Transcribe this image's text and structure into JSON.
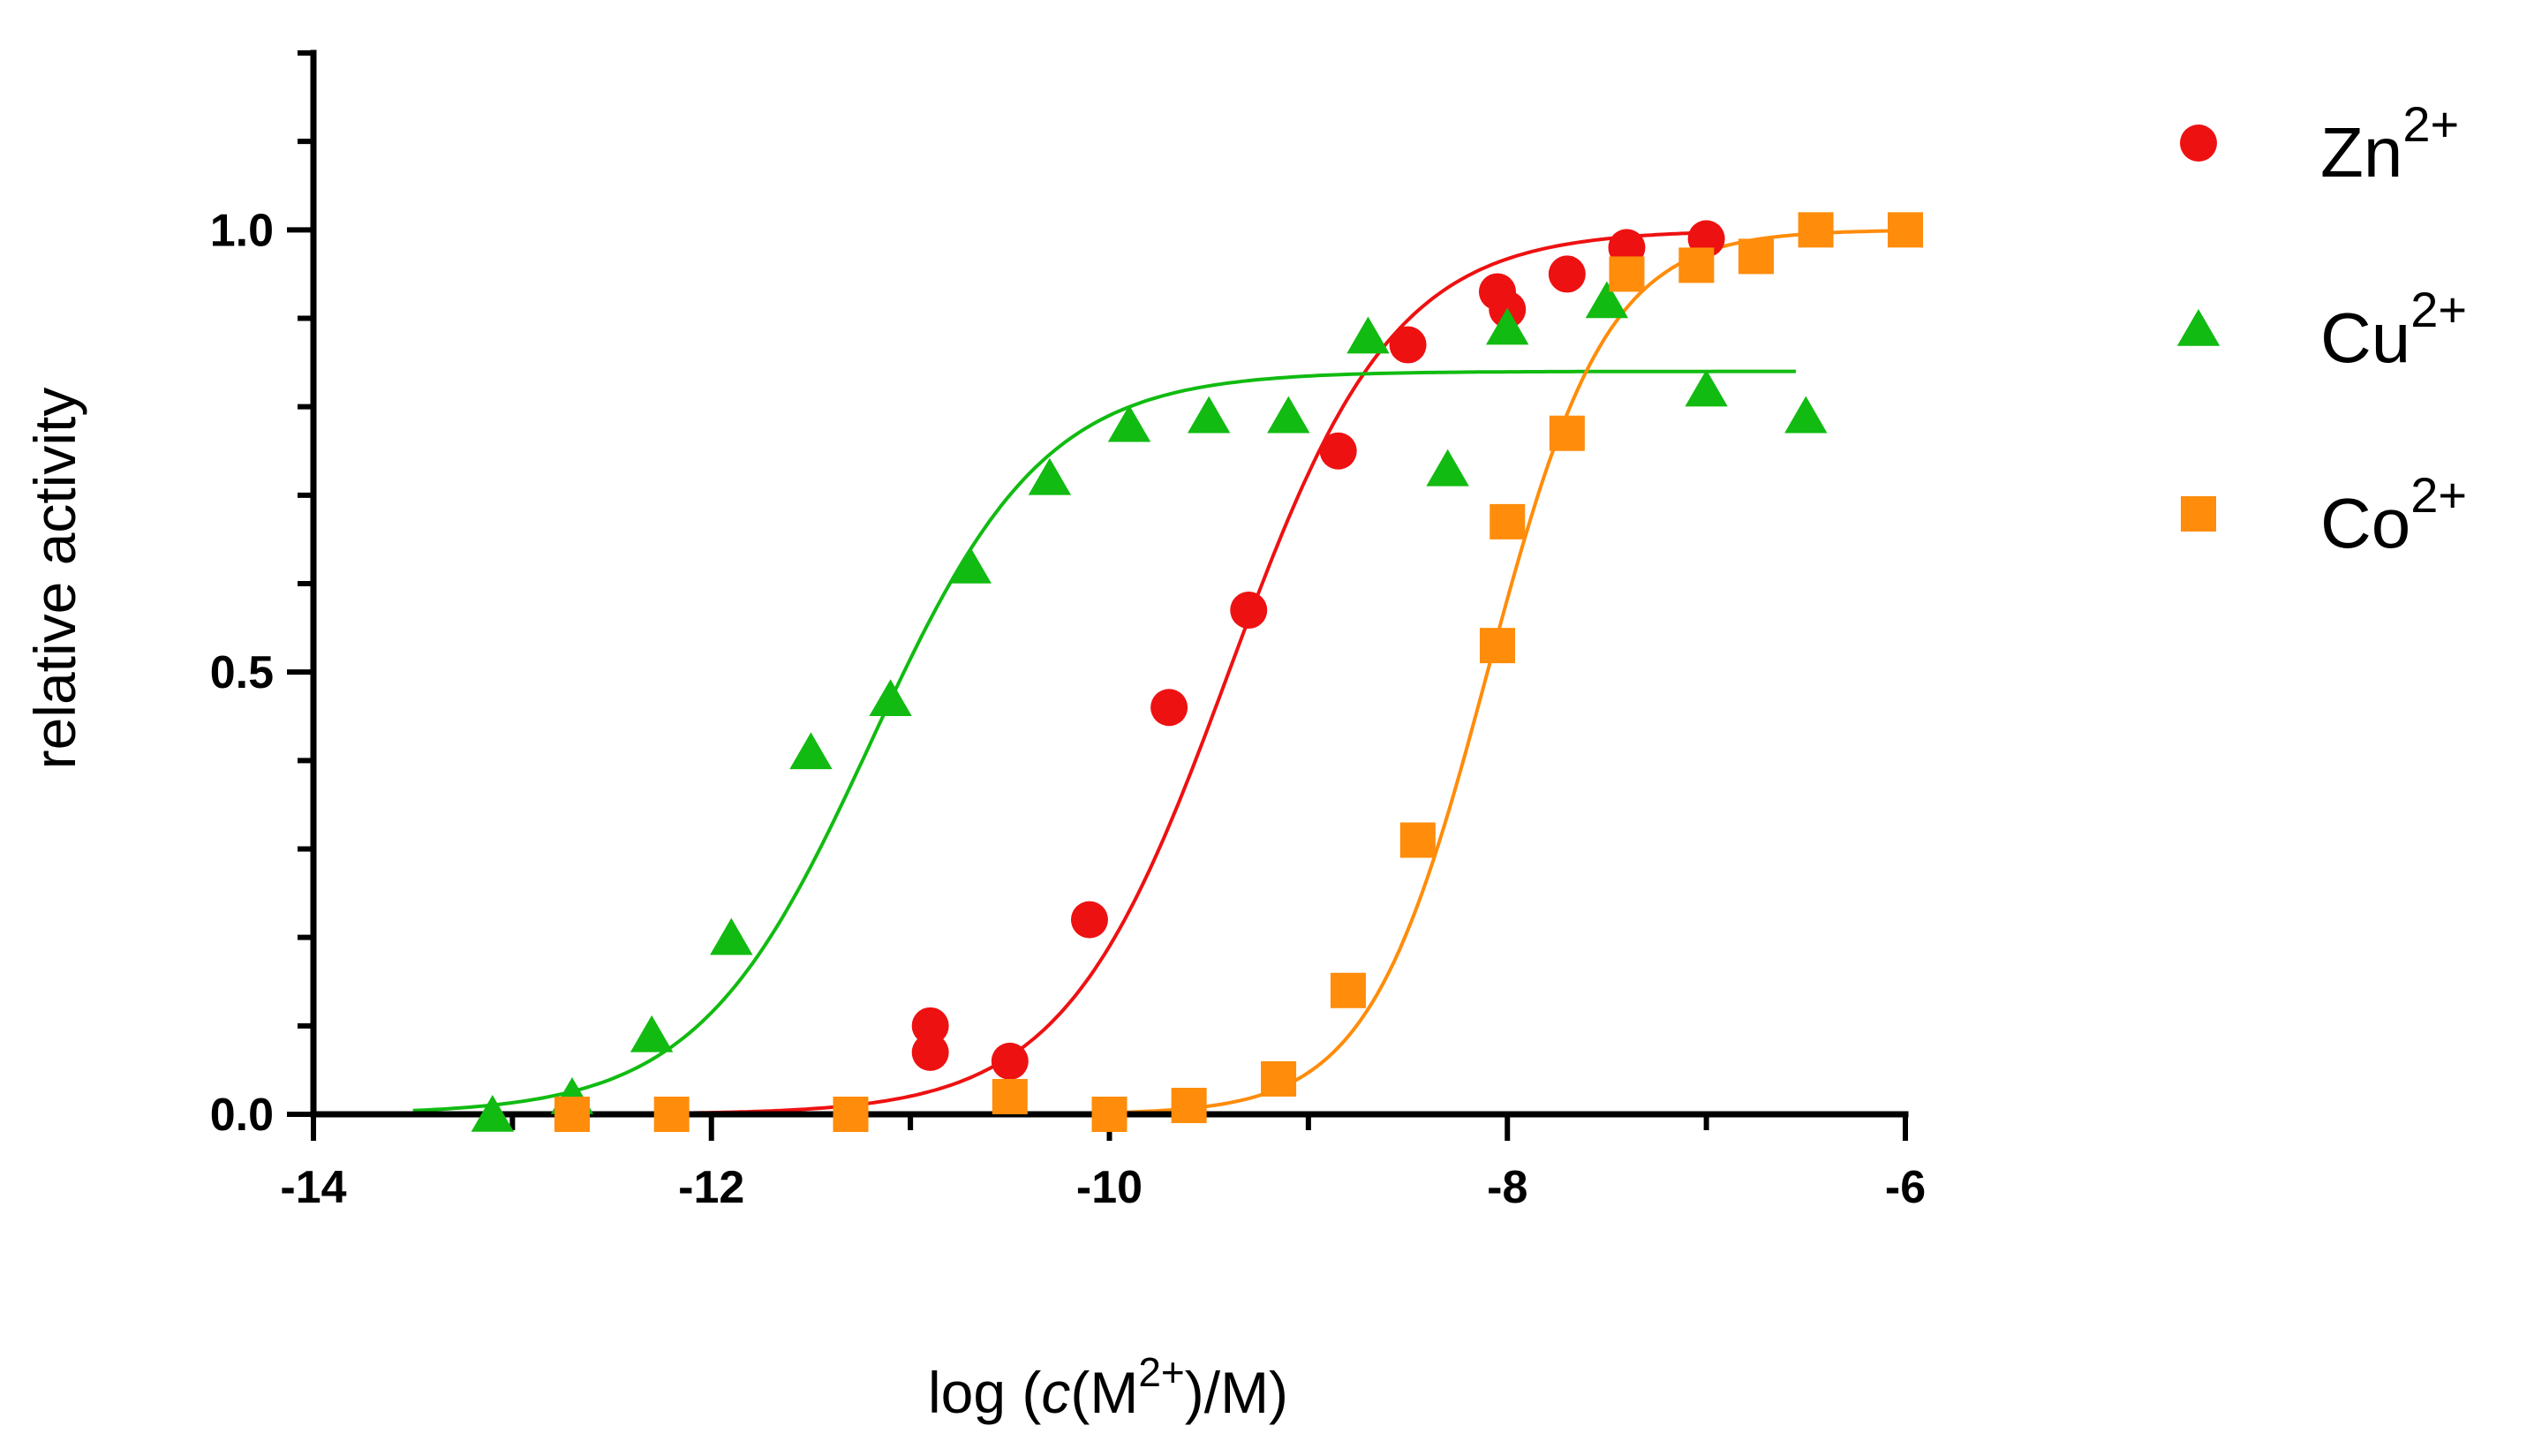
{
  "chart_data": {
    "type": "scatter",
    "title": "",
    "xlabel": {
      "prefix": "log (",
      "italic": "c",
      "mid": "(M",
      "sup": "2+",
      "suffix": ")/M)"
    },
    "ylabel": "relative activity",
    "xlim": [
      -14,
      -6
    ],
    "ylim": [
      0,
      1.2
    ],
    "xticks": [
      -14,
      -12,
      -10,
      -8,
      -6
    ],
    "xtick_labels": [
      "-14",
      "-12",
      "-10",
      "-8",
      "-6"
    ],
    "yticks": [
      0,
      0.5,
      1.0
    ],
    "ytick_labels": [
      "0.0",
      "0.5",
      "1.0"
    ],
    "legend_position": "top-right",
    "series": [
      {
        "name": "Zn2+",
        "label_base": "Zn",
        "label_sup": "2+",
        "marker": "circle",
        "color": "#ee1111",
        "x": [
          -10.9,
          -10.9,
          -10.5,
          -10.1,
          -9.7,
          -9.3,
          -8.85,
          -8.5,
          -8.05,
          -8.0,
          -7.7,
          -7.4,
          -7.0
        ],
        "y": [
          0.1,
          0.07,
          0.06,
          0.22,
          0.46,
          0.57,
          0.75,
          0.87,
          0.93,
          0.91,
          0.95,
          0.98,
          0.99
        ],
        "fit": {
          "bottom": 0.0,
          "top": 1.0,
          "logEC50": -9.4,
          "hill": 1.05,
          "xmin": -13.0,
          "xmax": -7.0
        }
      },
      {
        "name": "Cu2+",
        "label_base": "Cu",
        "label_sup": "2+",
        "marker": "triangle",
        "color": "#11bb11",
        "x": [
          -13.1,
          -12.7,
          -12.3,
          -11.9,
          -11.5,
          -11.1,
          -10.7,
          -10.3,
          -9.9,
          -9.5,
          -9.1,
          -8.7,
          -8.3,
          -8.0,
          -7.5,
          -7.0,
          -6.5
        ],
        "y": [
          0.0,
          0.02,
          0.09,
          0.2,
          0.41,
          0.47,
          0.62,
          0.72,
          0.78,
          0.79,
          0.79,
          0.88,
          0.73,
          0.89,
          0.92,
          0.82,
          0.79
        ],
        "fit": {
          "bottom": 0.0,
          "top": 0.84,
          "logEC50": -11.2,
          "hill": 1.0,
          "xmin": -13.5,
          "xmax": -6.55
        }
      },
      {
        "name": "Co2+",
        "label_base": "Co",
        "label_sup": "2+",
        "marker": "square",
        "color": "#ff8c0a",
        "x": [
          -12.7,
          -12.2,
          -11.3,
          -10.5,
          -10.0,
          -9.6,
          -9.15,
          -8.8,
          -8.45,
          -8.05,
          -8.0,
          -7.7,
          -7.4,
          -7.05,
          -6.75,
          -6.45,
          -6.0
        ],
        "y": [
          0.0,
          0.0,
          0.0,
          0.02,
          0.0,
          0.01,
          0.04,
          0.14,
          0.31,
          0.53,
          0.67,
          0.77,
          0.95,
          0.96,
          0.97,
          1.0,
          1.0
        ],
        "fit": {
          "bottom": 0.0,
          "top": 1.0,
          "logEC50": -8.1,
          "hill": 1.45,
          "xmin": -12.7,
          "xmax": -6.0
        }
      }
    ]
  }
}
